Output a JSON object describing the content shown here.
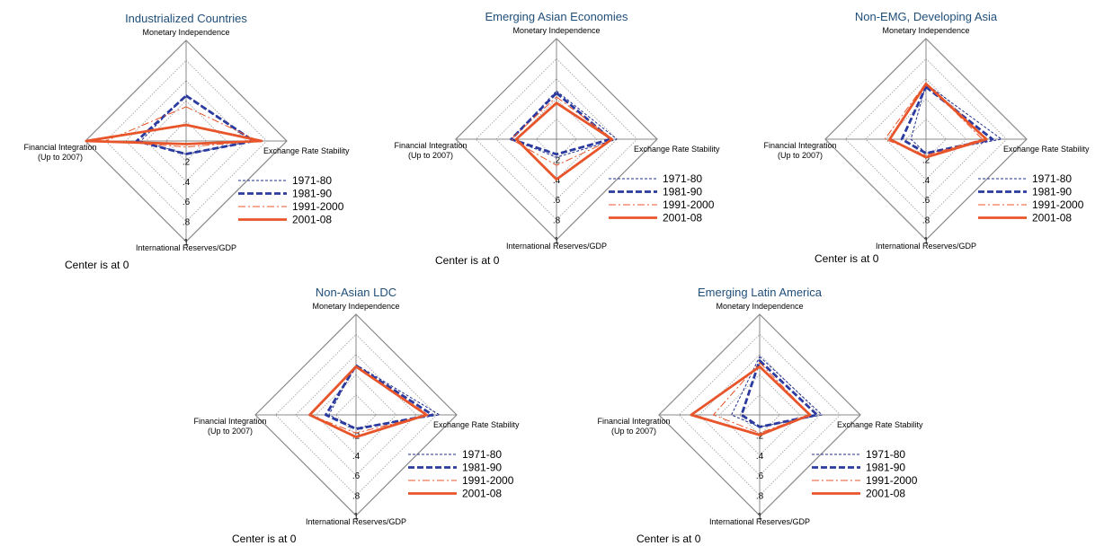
{
  "chart_data": [
    {
      "type": "radar",
      "title": "Industrialized Countries",
      "axes": [
        "Monetary Independence",
        "Exchange Rate Stability",
        "International Reserves/GDP",
        "Financial Integration\n(Up to 2007)"
      ],
      "tick_labels": [
        ".2",
        ".4",
        ".6",
        ".8",
        "1"
      ],
      "range": [
        0,
        1
      ],
      "note": "Center is at 0",
      "legend_position": "bottom-right",
      "series": [
        {
          "name": "1971-80",
          "color": "#1f2f8f",
          "dash": "dashed-fine",
          "values": [
            0.46,
            0.66,
            0.13,
            0.45
          ]
        },
        {
          "name": "1981-90",
          "color": "#2b3a9e",
          "dash": "dashed-bold",
          "values": [
            0.45,
            0.67,
            0.13,
            0.49
          ]
        },
        {
          "name": "1991-2000",
          "color": "#e8552a",
          "dash": "dash-dot",
          "values": [
            0.34,
            0.72,
            0.06,
            0.8
          ]
        },
        {
          "name": "2001-08",
          "color": "#e8552a",
          "dash": "solid",
          "values": [
            0.16,
            0.75,
            0.03,
            0.99
          ]
        }
      ]
    },
    {
      "type": "radar",
      "title": "Emerging Asian Economies",
      "axes": [
        "Monetary Independence",
        "Exchange Rate Stability",
        "International Reserves/GDP",
        "Financial Integration\n(Up to 2007)"
      ],
      "tick_labels": [
        ".2",
        ".4",
        ".6",
        ".8",
        "1"
      ],
      "range": [
        0,
        1
      ],
      "note": "Center is at 0",
      "legend_position": "bottom-right",
      "series": [
        {
          "name": "1971-80",
          "color": "#1f2f8f",
          "dash": "dashed-fine",
          "values": [
            0.48,
            0.6,
            0.18,
            0.45
          ]
        },
        {
          "name": "1981-90",
          "color": "#2b3a9e",
          "dash": "dashed-bold",
          "values": [
            0.46,
            0.54,
            0.15,
            0.45
          ]
        },
        {
          "name": "1991-2000",
          "color": "#e8552a",
          "dash": "dash-dot",
          "values": [
            0.42,
            0.56,
            0.26,
            0.45
          ]
        },
        {
          "name": "2001-08",
          "color": "#e8552a",
          "dash": "solid",
          "values": [
            0.36,
            0.55,
            0.4,
            0.4
          ]
        }
      ]
    },
    {
      "type": "radar",
      "title": "Non-EMG, Developing Asia",
      "axes": [
        "Monetary Independence",
        "Exchange Rate Stability",
        "International Reserves/GDP",
        "Financial Integration\n(Up to 2007)"
      ],
      "tick_labels": [
        ".2",
        ".4",
        ".6",
        ".8",
        "1"
      ],
      "range": [
        0,
        1
      ],
      "note": "Center is at 0",
      "legend_position": "bottom-right",
      "series": [
        {
          "name": "1971-80",
          "color": "#1f2f8f",
          "dash": "dashed-fine",
          "values": [
            0.55,
            0.75,
            0.14,
            0.15
          ]
        },
        {
          "name": "1981-90",
          "color": "#2b3a9e",
          "dash": "dashed-bold",
          "values": [
            0.52,
            0.66,
            0.14,
            0.24
          ]
        },
        {
          "name": "1991-2000",
          "color": "#e8552a",
          "dash": "dash-dot",
          "values": [
            0.56,
            0.56,
            0.16,
            0.41
          ]
        },
        {
          "name": "2001-08",
          "color": "#e8552a",
          "dash": "solid",
          "values": [
            0.55,
            0.6,
            0.18,
            0.36
          ]
        }
      ]
    },
    {
      "type": "radar",
      "title": "Non-Asian LDC",
      "axes": [
        "Monetary Independence",
        "Exchange Rate Stability",
        "International Reserves/GDP",
        "Financial Integration\n(Up to 2007)"
      ],
      "tick_labels": [
        ".2",
        ".4",
        ".6",
        ".8",
        "1"
      ],
      "range": [
        0,
        1
      ],
      "note": "Center is at 0",
      "legend_position": "bottom-right",
      "series": [
        {
          "name": "1971-80",
          "color": "#1f2f8f",
          "dash": "dashed-fine",
          "values": [
            0.5,
            0.83,
            0.13,
            0.27
          ]
        },
        {
          "name": "1981-90",
          "color": "#2b3a9e",
          "dash": "dashed-bold",
          "values": [
            0.49,
            0.76,
            0.14,
            0.3
          ]
        },
        {
          "name": "1991-2000",
          "color": "#e8552a",
          "dash": "dash-dot",
          "values": [
            0.48,
            0.72,
            0.18,
            0.46
          ]
        },
        {
          "name": "2001-08",
          "color": "#e8552a",
          "dash": "solid",
          "values": [
            0.48,
            0.7,
            0.22,
            0.46
          ]
        }
      ]
    },
    {
      "type": "radar",
      "title": "Emerging Latin America",
      "axes": [
        "Monetary Independence",
        "Exchange Rate Stability",
        "International Reserves/GDP",
        "Financial Integration\n(Up to 2007)"
      ],
      "tick_labels": [
        ".2",
        ".4",
        ".6",
        ".8",
        "1"
      ],
      "range": [
        0,
        1
      ],
      "note": "Center is at 0",
      "legend_position": "bottom-right",
      "series": [
        {
          "name": "1971-80",
          "color": "#1f2f8f",
          "dash": "dashed-fine",
          "values": [
            0.58,
            0.62,
            0.12,
            0.28
          ]
        },
        {
          "name": "1981-90",
          "color": "#2b3a9e",
          "dash": "dashed-bold",
          "values": [
            0.54,
            0.57,
            0.12,
            0.18
          ]
        },
        {
          "name": "1991-2000",
          "color": "#e8552a",
          "dash": "dash-dot",
          "values": [
            0.52,
            0.5,
            0.18,
            0.46
          ]
        },
        {
          "name": "2001-08",
          "color": "#e8552a",
          "dash": "solid",
          "values": [
            0.48,
            0.5,
            0.2,
            0.68
          ]
        }
      ]
    }
  ]
}
